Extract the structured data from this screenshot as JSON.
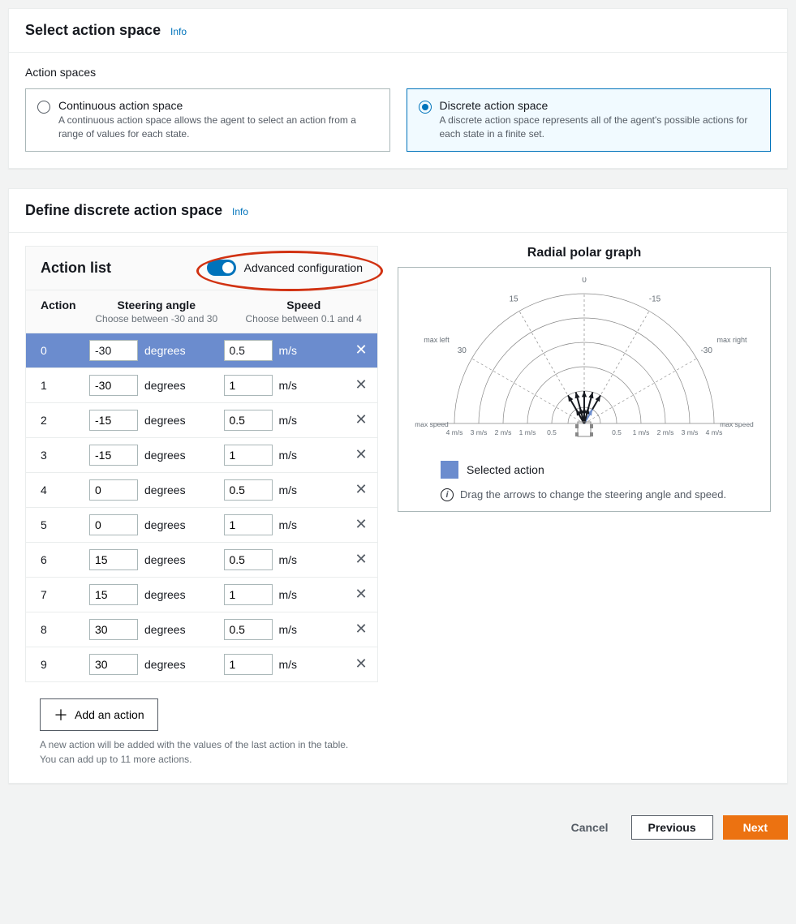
{
  "panel1": {
    "title": "Select action space",
    "info": "Info",
    "section_label": "Action spaces",
    "options": [
      {
        "title": "Continuous action space",
        "desc": "A continuous action space allows the agent to select an action from a range of values for each state.",
        "selected": false
      },
      {
        "title": "Discrete action space",
        "desc": "A discrete action space represents all of the agent's possible actions for each state in a finite set.",
        "selected": true
      }
    ]
  },
  "panel2": {
    "title": "Define discrete action space",
    "info": "Info",
    "action_list_title": "Action list",
    "toggle_label": "Advanced configuration",
    "toggle_on": true,
    "headers": {
      "action": "Action",
      "steer": "Steering angle",
      "steer_sub": "Choose between -30 and 30",
      "speed": "Speed",
      "speed_sub": "Choose between 0.1 and 4",
      "deg_unit": "degrees",
      "spd_unit": "m/s"
    },
    "rows": [
      {
        "idx": "0",
        "steer": "-30",
        "speed": "0.5",
        "selected": true
      },
      {
        "idx": "1",
        "steer": "-30",
        "speed": "1",
        "selected": false
      },
      {
        "idx": "2",
        "steer": "-15",
        "speed": "0.5",
        "selected": false
      },
      {
        "idx": "3",
        "steer": "-15",
        "speed": "1",
        "selected": false
      },
      {
        "idx": "4",
        "steer": "0",
        "speed": "0.5",
        "selected": false
      },
      {
        "idx": "5",
        "steer": "0",
        "speed": "1",
        "selected": false
      },
      {
        "idx": "6",
        "steer": "15",
        "speed": "0.5",
        "selected": false
      },
      {
        "idx": "7",
        "steer": "15",
        "speed": "1",
        "selected": false
      },
      {
        "idx": "8",
        "steer": "30",
        "speed": "0.5",
        "selected": false
      },
      {
        "idx": "9",
        "steer": "30",
        "speed": "1",
        "selected": false
      }
    ],
    "add_btn": "Add an action",
    "add_desc1": "A new action will be added with the values of the last action in the table.",
    "add_desc2": "You can add up to 11 more actions.",
    "polar": {
      "title": "Radial polar graph",
      "legend": "Selected action",
      "hint": "Drag the arrows to change the steering angle and speed.",
      "angle_ticks": [
        "30",
        "15",
        "0",
        "-15",
        "-30"
      ],
      "angle_tick_degrees": [
        -60,
        -30,
        0,
        30,
        60
      ],
      "side_labels": {
        "left": "max left",
        "right": "max right"
      },
      "speed_ticks": [
        "4 m/s",
        "3 m/s",
        "2 m/s",
        "1 m/s",
        "0.5"
      ],
      "speed_label_left": "max speed",
      "speed_label_right": "max speed",
      "ring_radii": [
        20,
        40,
        70,
        100,
        130,
        160
      ],
      "arrows": [
        {
          "steer": -30,
          "speed": 1.0,
          "sel": false
        },
        {
          "steer": -30,
          "speed": 0.5,
          "sel": true
        },
        {
          "steer": -15,
          "speed": 1.0,
          "sel": false
        },
        {
          "steer": -15,
          "speed": 0.5,
          "sel": false
        },
        {
          "steer": 0,
          "speed": 1.0,
          "sel": false
        },
        {
          "steer": 0,
          "speed": 0.5,
          "sel": false
        },
        {
          "steer": 15,
          "speed": 1.0,
          "sel": false
        },
        {
          "steer": 15,
          "speed": 0.5,
          "sel": false
        },
        {
          "steer": 30,
          "speed": 1.0,
          "sel": false
        },
        {
          "steer": 30,
          "speed": 0.5,
          "sel": false
        }
      ],
      "colors": {
        "grid": "#888888",
        "dash": "#888888",
        "arrow": "#16191f",
        "sel_arrow": "#6b8cce",
        "axis_text": "#687078"
      }
    }
  },
  "footer": {
    "cancel": "Cancel",
    "previous": "Previous",
    "next": "Next"
  }
}
